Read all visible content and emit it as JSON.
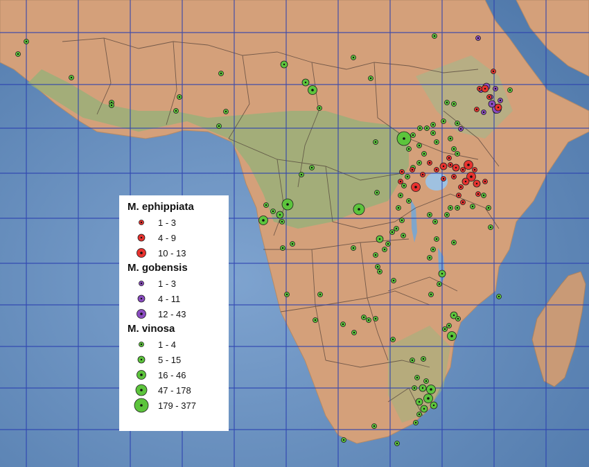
{
  "legend": {
    "groups": [
      {
        "species": "M. ephippiata",
        "color": "#e8332f",
        "classes": [
          {
            "label": "1 - 3",
            "size": 1
          },
          {
            "label": "4 - 9",
            "size": 2
          },
          {
            "label": "10 - 13",
            "size": 3
          }
        ]
      },
      {
        "species": "M. gobensis",
        "color": "#8a4cc0",
        "classes": [
          {
            "label": "1 - 3",
            "size": 1
          },
          {
            "label": "4 - 11",
            "size": 2
          },
          {
            "label": "12 - 43",
            "size": 3
          }
        ]
      },
      {
        "species": "M. vinosa",
        "color": "#5cc43c",
        "classes": [
          {
            "label": "1 - 4",
            "size": 1
          },
          {
            "label": "5 - 15",
            "size": 2
          },
          {
            "label": "16 - 46",
            "size": 3
          },
          {
            "label": "47 - 178",
            "size": 4
          },
          {
            "label": "179 - 377",
            "size": 5
          }
        ]
      }
    ]
  },
  "colors": {
    "ocean": "#5f88b8",
    "land": "#d9a67c",
    "forest": "#8fae6f",
    "grid": "#2a3fb0",
    "border": "#3a3030"
  }
}
